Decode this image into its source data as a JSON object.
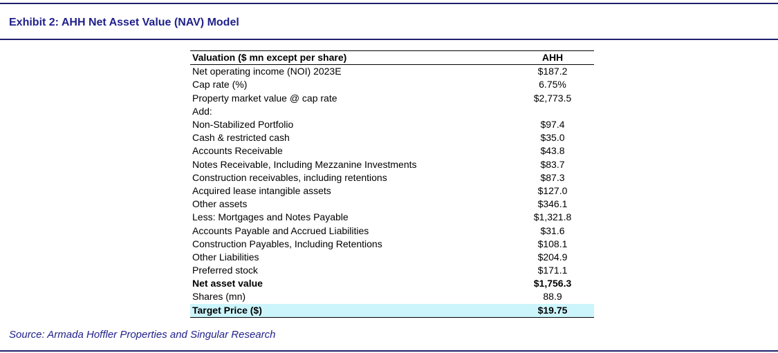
{
  "exhibit": {
    "title": "Exhibit 2:  AHH Net Asset Value (NAV) Model"
  },
  "table": {
    "header_label": "Valuation ($ mn except per share)",
    "header_value": "AHH",
    "rows": [
      {
        "label": "Net operating income (NOI) 2023E",
        "value": "$187.2"
      },
      {
        "label": "Cap rate (%)",
        "value": "6.75%"
      },
      {
        "label": "Property market value @ cap rate",
        "value": "$2,773.5"
      },
      {
        "label": "Add:",
        "value": ""
      },
      {
        "label": "Non-Stabilized Portfolio",
        "value": "$97.4"
      },
      {
        "label": "Cash & restricted cash",
        "value": "$35.0"
      },
      {
        "label": "Accounts Receivable",
        "value": "$43.8"
      },
      {
        "label": "Notes Receivable, Including Mezzanine Investments",
        "value": "$83.7"
      },
      {
        "label": "Construction receivables, including retentions",
        "value": "$87.3"
      },
      {
        "label": "Acquired lease intangible assets",
        "value": "$127.0"
      },
      {
        "label": "Other assets",
        "value": "$346.1"
      },
      {
        "label": "Less: Mortgages and Notes Payable",
        "value": "$1,321.8"
      },
      {
        "label": "Accounts Payable and Accrued Liabilities",
        "value": "$31.6"
      },
      {
        "label": "Construction Payables, Including Retentions",
        "value": "$108.1"
      },
      {
        "label": "Other Liabilities",
        "value": "$204.9"
      },
      {
        "label": "Preferred stock",
        "value": "$171.1"
      },
      {
        "label": "Net asset value",
        "value": "$1,756.3"
      },
      {
        "label": "Shares (mn)",
        "value": "88.9"
      },
      {
        "label": "Target Price ($)",
        "value": "$19.75"
      }
    ]
  },
  "source": {
    "text": "Source: Armada Hoffler Properties and Singular Research"
  },
  "colors": {
    "title_blue": "#1f1f8a",
    "rule_navy": "#1f1f6e",
    "target_highlight": "#ccf5fb"
  }
}
